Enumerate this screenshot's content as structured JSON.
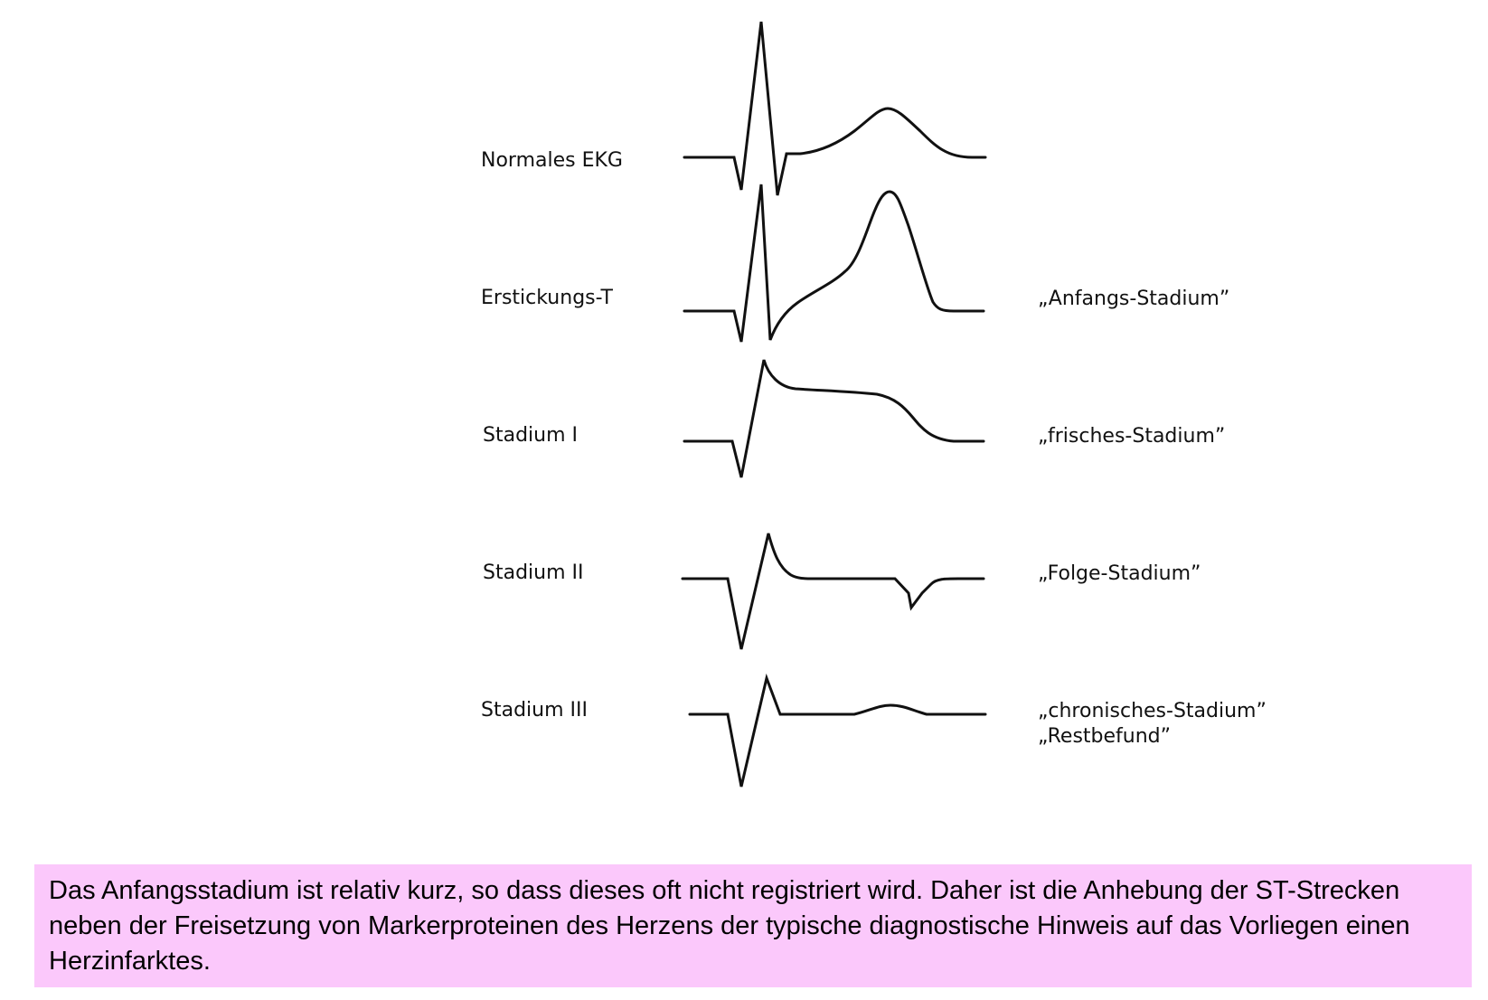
{
  "rows": [
    {
      "label": "Normales EKG",
      "stage": "",
      "stage_line2": ""
    },
    {
      "label": "Erstickungs-T",
      "stage": "„Anfangs-Stadium”",
      "stage_line2": ""
    },
    {
      "label": "Stadium I",
      "stage": "„frisches-Stadium”",
      "stage_line2": ""
    },
    {
      "label": "Stadium II",
      "stage": "„Folge-Stadium”",
      "stage_line2": ""
    },
    {
      "label": "Stadium III",
      "stage": "„chronisches-Stadium”",
      "stage_line2": "„Restbefund”"
    }
  ],
  "caption": "Das Anfangsstadium ist relativ kurz, so dass dieses oft nicht registriert wird. Daher ist die Anhebung der ST-Strecken neben der Freisetzung von Markerproteinen des Herzens der typische diagnostische Hinweis auf das Vorliegen einen Herzinfarktes.",
  "colors": {
    "caption_background": "#fbc8fb",
    "trace": "#111111"
  }
}
